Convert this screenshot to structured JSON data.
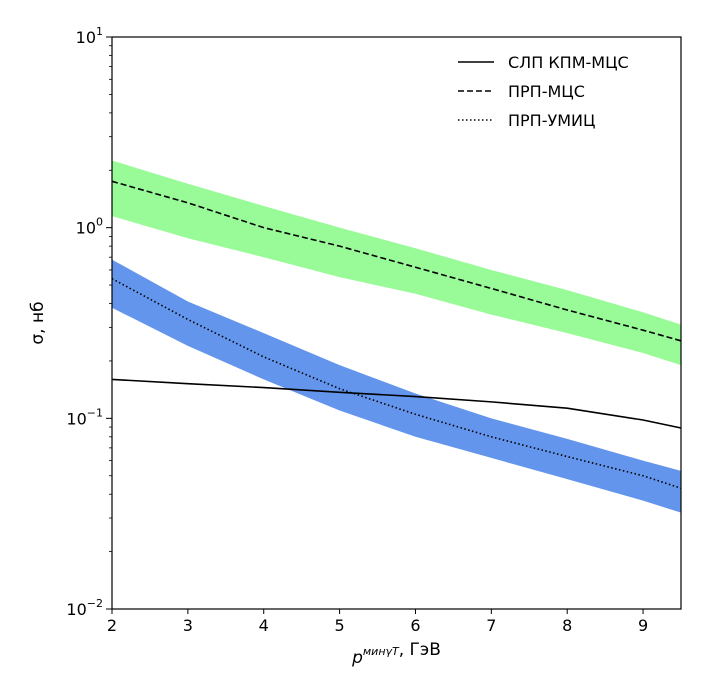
{
  "chart_data": {
    "type": "line",
    "xlabel_main": "p",
    "xlabel_sup": "мин",
    "xlabel_sub": "γT",
    "xlabel_suffix": ", ГэВ",
    "ylabel": "σ, нб",
    "xlim": [
      2,
      9.5
    ],
    "ylim": [
      0.01,
      10
    ],
    "yscale": "log",
    "xticks": [
      2,
      3,
      4,
      5,
      6,
      7,
      8,
      9
    ],
    "yticks": [
      {
        "value": 0.01,
        "base": "10",
        "exp": "−2"
      },
      {
        "value": 0.1,
        "base": "10",
        "exp": "−1"
      },
      {
        "value": 1,
        "base": "10",
        "exp": "0"
      },
      {
        "value": 10,
        "base": "10",
        "exp": "1"
      }
    ],
    "colors": {
      "band_green": "#98fb98",
      "band_blue": "#6495ed",
      "line": "#000000"
    },
    "bands": [
      {
        "name": "ПРП-МЦС band",
        "color": "#98fb98",
        "x": [
          2,
          3,
          4,
          5,
          6,
          7,
          8,
          9,
          9.5
        ],
        "upper": [
          2.25,
          1.7,
          1.3,
          1.0,
          0.78,
          0.6,
          0.47,
          0.36,
          0.31
        ],
        "lower": [
          1.15,
          0.88,
          0.7,
          0.55,
          0.45,
          0.35,
          0.28,
          0.22,
          0.19
        ]
      },
      {
        "name": "ПРП-УМИЦ band",
        "color": "#6495ed",
        "x": [
          2,
          3,
          4,
          5,
          6,
          7,
          8,
          9,
          9.5
        ],
        "upper": [
          0.68,
          0.41,
          0.28,
          0.19,
          0.135,
          0.1,
          0.078,
          0.06,
          0.053
        ],
        "lower": [
          0.38,
          0.24,
          0.16,
          0.11,
          0.08,
          0.062,
          0.048,
          0.037,
          0.032
        ]
      }
    ],
    "series": [
      {
        "name": "СЛП КПМ-МЦС",
        "style": "solid",
        "x": [
          2,
          3,
          4,
          5,
          6,
          7,
          8,
          9,
          9.5
        ],
        "values": [
          0.16,
          0.152,
          0.145,
          0.137,
          0.13,
          0.122,
          0.113,
          0.098,
          0.089
        ]
      },
      {
        "name": "ПРП-МЦС",
        "style": "dashed",
        "x": [
          2,
          3,
          4,
          5,
          6,
          7,
          8,
          9,
          9.5
        ],
        "values": [
          1.75,
          1.35,
          1.0,
          0.8,
          0.62,
          0.48,
          0.37,
          0.29,
          0.255
        ]
      },
      {
        "name": "ПРП-УМИЦ",
        "style": "dotted",
        "x": [
          2,
          3,
          4,
          5,
          6,
          7,
          8,
          9,
          9.5
        ],
        "values": [
          0.54,
          0.33,
          0.21,
          0.143,
          0.105,
          0.08,
          0.063,
          0.05,
          0.043
        ]
      }
    ],
    "legend_position": "top-right"
  }
}
